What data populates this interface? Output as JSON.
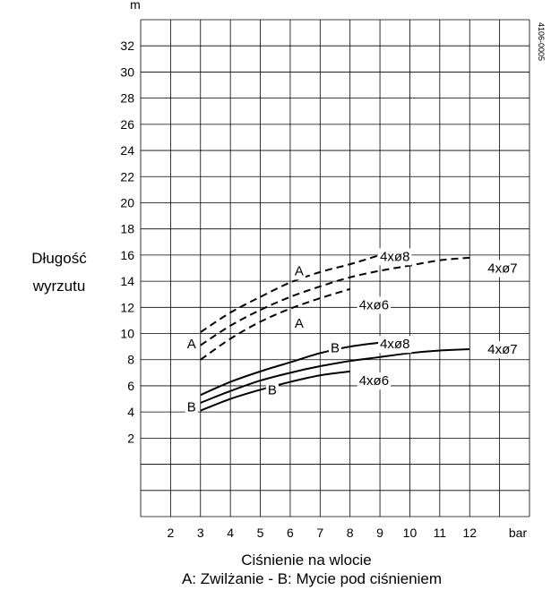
{
  "chart_data": {
    "type": "line",
    "title": "",
    "y_unit": "m",
    "x_unit": "bar",
    "ylabel_lines": [
      "Długość",
      "wyrzutu"
    ],
    "xlabel": "Ciśnienie na wlocie",
    "caption": "A: Zwilżanie - B: Mycie pod ciśnieniem",
    "doc_code": "4106-0005",
    "x_ticks": [
      2,
      3,
      4,
      5,
      6,
      7,
      8,
      9,
      10,
      11,
      12
    ],
    "y_ticks": [
      2,
      4,
      6,
      8,
      10,
      12,
      14,
      16,
      18,
      20,
      22,
      24,
      26,
      28,
      30,
      32
    ],
    "xlim": [
      1,
      14
    ],
    "ylim": [
      -4,
      34
    ],
    "grid": true,
    "series": [
      {
        "name": "4xø8",
        "mode": "A",
        "style": "dashed",
        "x": [
          3,
          4,
          5,
          6,
          7,
          8,
          9
        ],
        "y": [
          10.1,
          11.6,
          12.8,
          13.9,
          14.7,
          15.3,
          16.0
        ]
      },
      {
        "name": "4xø7",
        "mode": "A",
        "style": "dashed",
        "x": [
          3,
          4,
          5,
          6,
          7,
          8,
          9,
          10,
          11,
          12
        ],
        "y": [
          9.1,
          10.6,
          11.8,
          12.8,
          13.6,
          14.3,
          14.8,
          15.2,
          15.6,
          15.8
        ]
      },
      {
        "name": "4xø6",
        "mode": "A",
        "style": "dashed",
        "x": [
          3,
          4,
          5,
          6,
          7,
          8
        ],
        "y": [
          8.0,
          9.6,
          10.9,
          11.9,
          12.7,
          13.4
        ]
      },
      {
        "name": "4xø8",
        "mode": "B",
        "style": "solid",
        "x": [
          3,
          4,
          5,
          6,
          7,
          8,
          9
        ],
        "y": [
          5.3,
          6.3,
          7.1,
          7.8,
          8.5,
          9.0,
          9.3
        ]
      },
      {
        "name": "4xø7",
        "mode": "B",
        "style": "solid",
        "x": [
          3,
          4,
          5,
          6,
          7,
          8,
          9,
          10,
          11,
          12
        ],
        "y": [
          4.7,
          5.6,
          6.4,
          7.0,
          7.5,
          7.9,
          8.2,
          8.5,
          8.7,
          8.8
        ]
      },
      {
        "name": "4xø6",
        "mode": "B",
        "style": "solid",
        "x": [
          3,
          4,
          5,
          6,
          7,
          8
        ],
        "y": [
          4.1,
          5.0,
          5.7,
          6.3,
          6.8,
          7.1
        ]
      }
    ],
    "series_labels": [
      {
        "text": "4xø8",
        "x": 9.5,
        "y": 15.9
      },
      {
        "text": "4xø7",
        "x": 13.1,
        "y": 15.0
      },
      {
        "text": "4xø6",
        "x": 8.8,
        "y": 12.2
      },
      {
        "text": "4xø8",
        "x": 9.5,
        "y": 9.2
      },
      {
        "text": "4xø7",
        "x": 13.1,
        "y": 8.8
      },
      {
        "text": "4xø6",
        "x": 8.8,
        "y": 6.4
      }
    ],
    "letter_labels": [
      {
        "text": "A",
        "x": 6.3,
        "y": 14.8
      },
      {
        "text": "A",
        "x": 6.3,
        "y": 10.8
      },
      {
        "text": "A",
        "x": 2.7,
        "y": 9.2
      },
      {
        "text": "B",
        "x": 7.5,
        "y": 8.9
      },
      {
        "text": "B",
        "x": 5.4,
        "y": 5.7
      },
      {
        "text": "B",
        "x": 2.7,
        "y": 4.4
      }
    ]
  }
}
